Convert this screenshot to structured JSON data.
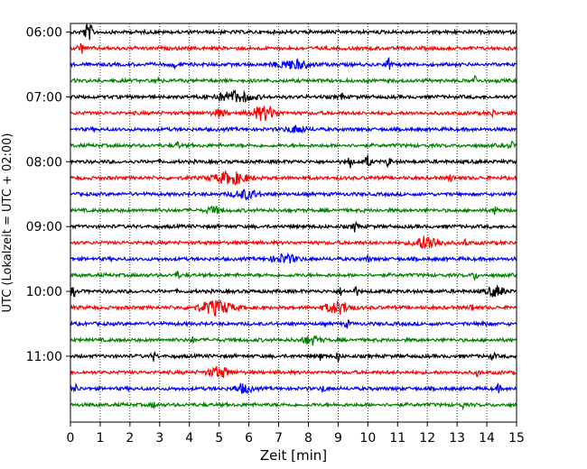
{
  "chart_data": {
    "type": "line",
    "title": "",
    "xlabel": "Zeit  [min]",
    "ylabel": "UTC (Lokalzeit = UTC + 02:00)",
    "xlim": [
      0,
      15
    ],
    "x_ticks": [
      0,
      1,
      2,
      3,
      4,
      5,
      6,
      7,
      8,
      9,
      10,
      11,
      12,
      13,
      14,
      15
    ],
    "x_tick_labels": [
      "0",
      "1",
      "2",
      "3",
      "4",
      "5",
      "6",
      "7",
      "8",
      "9",
      "10",
      "11",
      "12",
      "13",
      "14",
      "15"
    ],
    "y_ticks": [
      "06:00",
      "07:00",
      "08:00",
      "09:00",
      "10:00",
      "11:00"
    ],
    "grid": {
      "x": true,
      "y": false,
      "style": "dotted"
    },
    "legend": "none",
    "trace_colors": [
      "#000000",
      "#ff0000",
      "#0000ff",
      "#008000"
    ],
    "traces": [
      {
        "start": "06:00",
        "color": "#000000",
        "events": [
          [
            0.6,
            1.0,
            0.2
          ]
        ]
      },
      {
        "start": "06:15",
        "color": "#ff0000",
        "events": [
          [
            0.35,
            0.6,
            0.15
          ]
        ]
      },
      {
        "start": "06:30",
        "color": "#0000ff",
        "events": [
          [
            3.5,
            0.4,
            0.1
          ],
          [
            7.5,
            0.5,
            0.8
          ],
          [
            10.7,
            0.8,
            0.1
          ]
        ]
      },
      {
        "start": "06:45",
        "color": "#008000",
        "events": [
          [
            2.9,
            0.4,
            0.1
          ],
          [
            13.6,
            0.5,
            0.1
          ]
        ]
      },
      {
        "start": "07:00",
        "color": "#000000",
        "events": [
          [
            5.5,
            0.6,
            0.9
          ],
          [
            9.1,
            0.4,
            0.1
          ]
        ]
      },
      {
        "start": "07:15",
        "color": "#ff0000",
        "events": [
          [
            5.0,
            0.4,
            0.3
          ],
          [
            6.5,
            0.8,
            0.6
          ],
          [
            14.2,
            0.4,
            0.1
          ]
        ]
      },
      {
        "start": "07:30",
        "color": "#0000ff",
        "events": [
          [
            7.6,
            0.4,
            0.5
          ]
        ]
      },
      {
        "start": "07:45",
        "color": "#008000",
        "events": [
          [
            3.6,
            0.4,
            0.1
          ],
          [
            14.8,
            0.5,
            0.1
          ]
        ]
      },
      {
        "start": "08:00",
        "color": "#000000",
        "events": [
          [
            9.4,
            0.7,
            0.1
          ],
          [
            10.0,
            0.8,
            0.1
          ],
          [
            10.7,
            0.6,
            0.1
          ]
        ]
      },
      {
        "start": "08:15",
        "color": "#ff0000",
        "events": [
          [
            5.4,
            0.7,
            0.8
          ],
          [
            12.8,
            0.4,
            0.1
          ]
        ]
      },
      {
        "start": "08:30",
        "color": "#0000ff",
        "events": [
          [
            5.9,
            0.5,
            0.6
          ]
        ]
      },
      {
        "start": "08:45",
        "color": "#008000",
        "events": [
          [
            4.8,
            0.4,
            0.3
          ],
          [
            14.3,
            0.5,
            0.1
          ]
        ]
      },
      {
        "start": "09:00",
        "color": "#000000",
        "events": [
          [
            9.6,
            0.8,
            0.1
          ]
        ]
      },
      {
        "start": "09:15",
        "color": "#ff0000",
        "events": [
          [
            12.0,
            0.8,
            0.6
          ],
          [
            13.3,
            0.4,
            0.1
          ]
        ]
      },
      {
        "start": "09:30",
        "color": "#0000ff",
        "events": [
          [
            7.2,
            0.5,
            0.6
          ],
          [
            10.0,
            0.3,
            0.1
          ]
        ]
      },
      {
        "start": "09:45",
        "color": "#008000",
        "events": [
          [
            3.6,
            0.4,
            0.1
          ],
          [
            13.6,
            0.5,
            0.1
          ]
        ]
      },
      {
        "start": "10:00",
        "color": "#000000",
        "events": [
          [
            0.1,
            0.5,
            0.1
          ],
          [
            9.1,
            0.4,
            0.1
          ],
          [
            9.6,
            0.5,
            0.1
          ],
          [
            14.3,
            0.6,
            0.4
          ]
        ]
      },
      {
        "start": "10:15",
        "color": "#ff0000",
        "events": [
          [
            4.9,
            0.8,
            0.8
          ],
          [
            9.0,
            0.7,
            0.6
          ],
          [
            13.5,
            0.4,
            0.1
          ]
        ]
      },
      {
        "start": "10:30",
        "color": "#0000ff",
        "events": [
          [
            9.3,
            0.4,
            0.1
          ],
          [
            13.9,
            0.4,
            0.1
          ]
        ]
      },
      {
        "start": "10:45",
        "color": "#008000",
        "events": [
          [
            8.1,
            0.5,
            0.4
          ],
          [
            4.1,
            0.3,
            0.1
          ]
        ]
      },
      {
        "start": "11:00",
        "color": "#000000",
        "events": [
          [
            2.8,
            0.5,
            0.1
          ],
          [
            8.4,
            0.4,
            0.1
          ],
          [
            9.0,
            0.5,
            0.1
          ],
          [
            14.2,
            0.4,
            0.1
          ]
        ]
      },
      {
        "start": "11:15",
        "color": "#ff0000",
        "events": [
          [
            5.0,
            0.6,
            0.5
          ],
          [
            13.7,
            0.4,
            0.1
          ]
        ]
      },
      {
        "start": "11:30",
        "color": "#0000ff",
        "events": [
          [
            0.2,
            0.4,
            0.1
          ],
          [
            5.8,
            0.5,
            0.4
          ],
          [
            8.5,
            0.4,
            0.1
          ],
          [
            14.4,
            0.4,
            0.1
          ]
        ]
      },
      {
        "start": "11:45",
        "color": "#008000",
        "events": [
          [
            2.8,
            0.3,
            0.1
          ],
          [
            13.2,
            0.3,
            0.1
          ]
        ]
      }
    ]
  }
}
